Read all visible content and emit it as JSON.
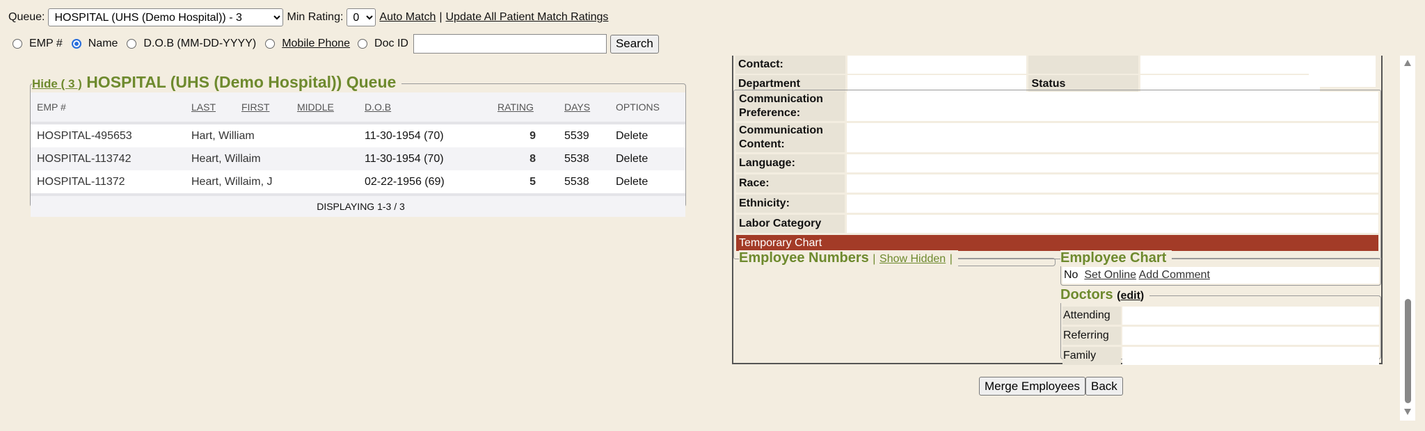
{
  "toolbar": {
    "queue_label": "Queue:",
    "queue_value": "HOSPITAL (UHS (Demo Hospital)) - 3",
    "min_rating_label": "Min Rating:",
    "min_rating_value": "0",
    "auto_match": "Auto Match",
    "separator": "|",
    "update_all": "Update All Patient Match Ratings"
  },
  "search": {
    "options": [
      {
        "label": "EMP #",
        "selected": false
      },
      {
        "label": "Name",
        "selected": true
      },
      {
        "label": "D.O.B (MM-DD-YYYY)",
        "selected": false
      },
      {
        "label": "Mobile Phone",
        "selected": false
      },
      {
        "label": "Doc ID",
        "selected": false
      }
    ],
    "value": "",
    "button": "Search"
  },
  "queue": {
    "hide_link": "Hide ( 3 )",
    "title": "HOSPITAL (UHS (Demo Hospital)) Queue",
    "columns": [
      "EMP #",
      "LAST",
      "FIRST",
      "MIDDLE",
      "D.O.B",
      "RATING",
      "DAYS",
      "OPTIONS"
    ],
    "rows": [
      {
        "emp": "HOSPITAL-495653",
        "name": "Hart, William",
        "dob": "11-30-1954 (70)",
        "rating": "9",
        "days": "5539",
        "option": "Delete"
      },
      {
        "emp": "HOSPITAL-113742",
        "name": "Heart, Willaim",
        "dob": "11-30-1954 (70)",
        "rating": "8",
        "days": "5538",
        "option": "Delete"
      },
      {
        "emp": "HOSPITAL-11372",
        "name": "Heart, Willaim, J",
        "dob": "02-22-1956 (69)",
        "rating": "5",
        "days": "5538",
        "option": "Delete"
      }
    ],
    "footer": "DISPLAYING 1-3 / 3"
  },
  "details": {
    "contact": "Contact:",
    "department": "Department",
    "status": "Status",
    "comm_pref": "Communication Preference:",
    "comm_content": "Communication Content:",
    "language": "Language:",
    "race": "Race:",
    "ethnicity": "Ethnicity:",
    "labor": "Labor Category",
    "temporary": "Temporary Chart",
    "temporary_color": "#a33b27"
  },
  "emp_numbers": {
    "title": "Employee Numbers",
    "sep1": "|",
    "show_hidden": "Show Hidden",
    "sep2": "|"
  },
  "emp_chart": {
    "title": "Employee Chart",
    "value": "No",
    "set_online": "Set Online",
    "add_comment": "Add Comment"
  },
  "doctors": {
    "title": "Doctors",
    "edit_open": "(",
    "edit": "edit",
    "edit_close": ")",
    "rows": [
      "Attending",
      "Referring",
      "Family"
    ]
  },
  "actions": {
    "merge": "Merge Employees",
    "back": "Back"
  }
}
